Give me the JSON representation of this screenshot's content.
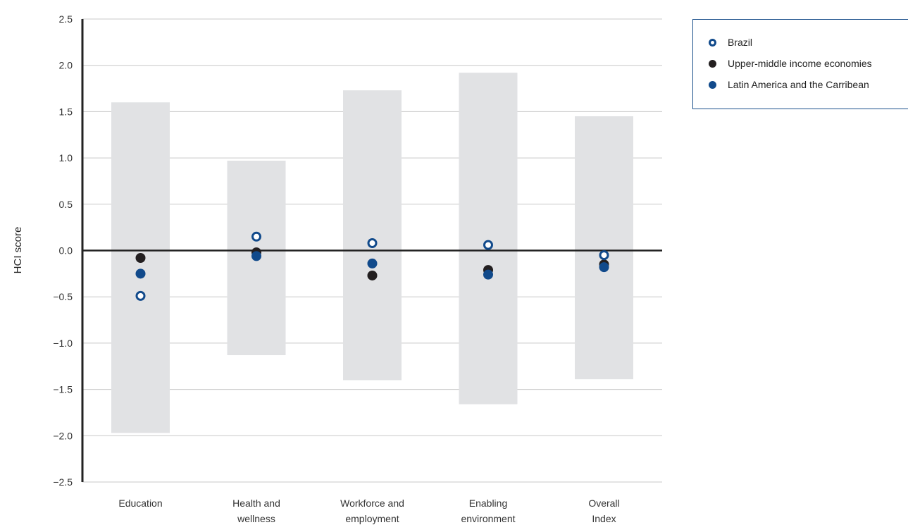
{
  "chart_data": {
    "type": "scatter",
    "ylabel": "HCI score",
    "ylim": [
      -2.5,
      2.5
    ],
    "yticks": [
      "2.5",
      "2.0",
      "1.5",
      "1.0",
      "0.5",
      "0.0",
      "−0.5",
      "−1.0",
      "−1.5",
      "−2.0",
      "−2.5"
    ],
    "yticks_values": [
      2.5,
      2.0,
      1.5,
      1.0,
      0.5,
      0.0,
      -0.5,
      -1.0,
      -1.5,
      -2.0,
      -2.5
    ],
    "categories": [
      [
        "Education"
      ],
      [
        "Health and",
        "wellness"
      ],
      [
        "Workforce and",
        "employment"
      ],
      [
        "Enabling",
        "environment"
      ],
      [
        "Overall",
        "Index"
      ]
    ],
    "ranges": [
      {
        "min": -1.97,
        "max": 1.6
      },
      {
        "min": -1.13,
        "max": 0.97
      },
      {
        "min": -1.4,
        "max": 1.73
      },
      {
        "min": -1.66,
        "max": 1.92
      },
      {
        "min": -1.39,
        "max": 1.45
      }
    ],
    "series": [
      {
        "name": "Brazil",
        "values": [
          -0.49,
          0.15,
          0.08,
          0.06,
          -0.05
        ],
        "color": "#114a8b",
        "hollow": true
      },
      {
        "name": "Upper-middle income economies",
        "values": [
          -0.08,
          -0.02,
          -0.27,
          -0.21,
          -0.15
        ],
        "color": "#231f20",
        "hollow": false
      },
      {
        "name": "Latin America and the Carribean",
        "values": [
          -0.25,
          -0.06,
          -0.14,
          -0.26,
          -0.18
        ],
        "color": "#114a8b",
        "hollow": false
      }
    ],
    "grid": true,
    "legend_position": "top-right",
    "range_color": "#e1e2e4"
  }
}
